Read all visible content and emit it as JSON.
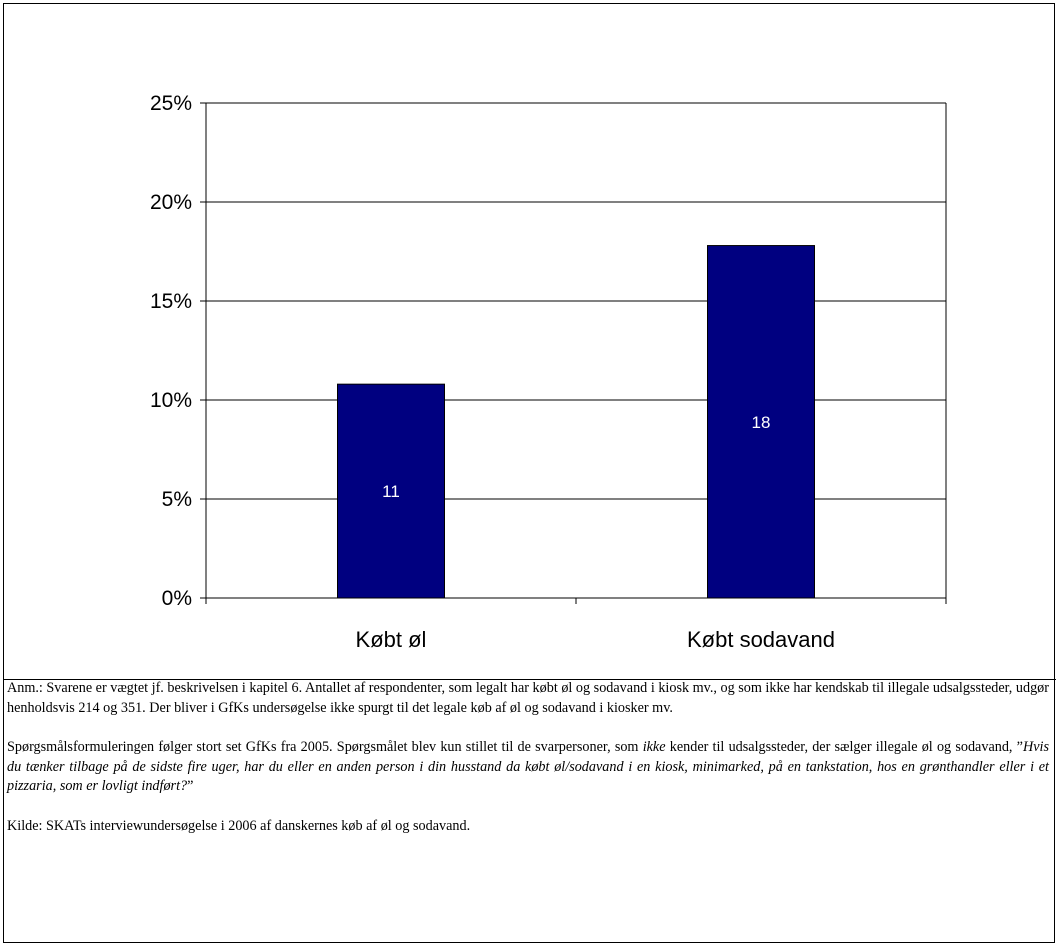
{
  "chart_data": {
    "type": "bar",
    "categories": [
      "Købt øl",
      "Købt sodavand"
    ],
    "values": [
      11,
      18
    ],
    "value_labels": [
      "11",
      "18"
    ],
    "series_color": "#000080",
    "ylim": [
      0,
      25
    ],
    "yticks": [
      "0%",
      "5%",
      "10%",
      "15%",
      "20%",
      "25%"
    ],
    "ytick_values": [
      0,
      5,
      10,
      15,
      20,
      25
    ],
    "grid": true,
    "legend": "none",
    "title": "",
    "xlabel": "",
    "ylabel": ""
  },
  "notes": {
    "anm": "Anm.: Svarene er vægtet jf. beskrivelsen i kapitel 6. Antallet af respondenter, som legalt har købt øl og sodavand i kiosk mv., og som ikke har kendskab til illegale udsalgssteder, udgør henholdsvis 214 og 351. Der bliver i GfKs undersøgelse ikke spurgt til det legale køb af øl og sodavand i kiosker mv.",
    "sporgsmaal_part1": "Spørgsmålsformuleringen følger stort set GfKs fra 2005. Spørgsmålet blev kun stillet til de svarpersoner, som ",
    "sporgsmaal_ikke": "ikke",
    "sporgsmaal_part2": " kender til udsalgssteder, der sælger illegale øl og sodavand, ”",
    "sporgsmaal_question": "Hvis du tænker tilbage på de sidste fire uger, har du eller en anden person i din husstand da købt øl/sodavand i en kiosk, minimarked, på en tankstation, hos en grønthandler eller i et pizzaria, som er lovligt indført?",
    "sporgsmaal_end": "”",
    "kilde": "Kilde: SKATs interviewundersøgelse i 2006 af danskernes køb af øl og sodavand."
  }
}
